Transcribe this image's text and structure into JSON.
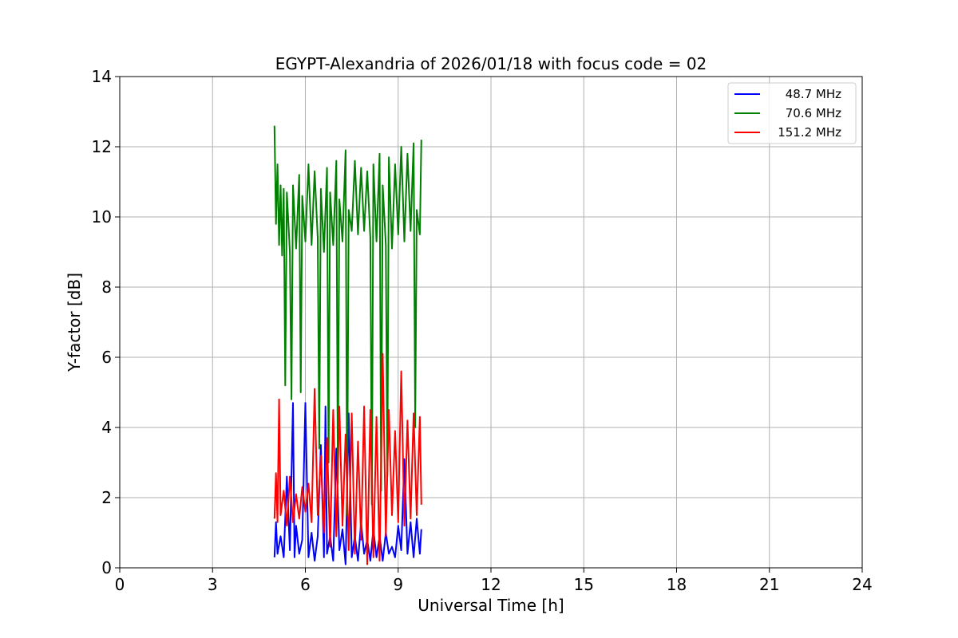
{
  "chart_data": {
    "type": "line",
    "title": "EGYPT-Alexandria of 2026/01/18 with focus code = 02",
    "xlabel": "Universal Time [h]",
    "ylabel": "Y-factor [dB]",
    "xlim": [
      0,
      24
    ],
    "ylim": [
      0,
      14
    ],
    "xticks": [
      0,
      3,
      6,
      9,
      12,
      15,
      18,
      21,
      24
    ],
    "yticks": [
      0,
      2,
      4,
      6,
      8,
      10,
      12,
      14
    ],
    "xtick_labels": [
      "0",
      "3",
      "6",
      "9",
      "12",
      "15",
      "18",
      "21",
      "24"
    ],
    "ytick_labels": [
      "0",
      "2",
      "4",
      "6",
      "8",
      "10",
      "12",
      "14"
    ],
    "grid": true,
    "legend_position": "top-right",
    "series": [
      {
        "name": "48.7 MHz",
        "color": "#0000ff",
        "x": [
          5.0,
          5.05,
          5.1,
          5.2,
          5.3,
          5.4,
          5.5,
          5.6,
          5.65,
          5.7,
          5.8,
          5.9,
          6.0,
          6.1,
          6.2,
          6.3,
          6.4,
          6.5,
          6.6,
          6.65,
          6.7,
          6.8,
          6.9,
          7.0,
          7.1,
          7.2,
          7.3,
          7.4,
          7.5,
          7.6,
          7.7,
          7.8,
          7.9,
          8.0,
          8.1,
          8.2,
          8.3,
          8.4,
          8.5,
          8.6,
          8.7,
          8.8,
          8.9,
          9.0,
          9.1,
          9.2,
          9.3,
          9.4,
          9.5,
          9.6,
          9.7,
          9.75
        ],
        "y": [
          0.3,
          1.3,
          0.4,
          0.9,
          0.3,
          2.6,
          0.5,
          4.7,
          0.3,
          1.2,
          0.4,
          0.8,
          4.7,
          0.3,
          1.0,
          0.2,
          0.9,
          3.5,
          0.3,
          4.6,
          0.4,
          0.9,
          0.2,
          3.4,
          0.5,
          1.1,
          0.1,
          4.4,
          0.3,
          0.9,
          0.2,
          1.3,
          0.4,
          0.8,
          0.2,
          1.1,
          0.3,
          0.9,
          0.2,
          1.0,
          0.4,
          0.6,
          0.3,
          1.2,
          0.5,
          3.1,
          0.4,
          1.3,
          0.3,
          1.4,
          0.4,
          1.1
        ]
      },
      {
        "name": "70.6 MHz",
        "color": "#008000",
        "x": [
          5.0,
          5.05,
          5.1,
          5.15,
          5.2,
          5.25,
          5.3,
          5.35,
          5.4,
          5.5,
          5.55,
          5.6,
          5.7,
          5.8,
          5.85,
          5.9,
          6.0,
          6.1,
          6.2,
          6.3,
          6.4,
          6.45,
          6.5,
          6.6,
          6.7,
          6.75,
          6.8,
          6.9,
          7.0,
          7.05,
          7.1,
          7.2,
          7.3,
          7.35,
          7.4,
          7.5,
          7.6,
          7.7,
          7.8,
          7.9,
          8.0,
          8.1,
          8.15,
          8.2,
          8.3,
          8.4,
          8.45,
          8.5,
          8.6,
          8.65,
          8.7,
          8.8,
          8.9,
          9.0,
          9.1,
          9.2,
          9.3,
          9.4,
          9.5,
          9.55,
          9.6,
          9.7,
          9.75
        ],
        "y": [
          12.6,
          9.8,
          11.5,
          9.2,
          10.9,
          8.9,
          10.8,
          5.2,
          10.7,
          9.0,
          4.8,
          10.9,
          9.1,
          11.2,
          5.0,
          10.6,
          9.3,
          11.5,
          9.2,
          11.3,
          9.4,
          3.4,
          10.8,
          9.0,
          11.4,
          3.0,
          10.7,
          9.2,
          11.6,
          2.4,
          10.5,
          9.3,
          11.9,
          1.5,
          10.2,
          9.6,
          11.6,
          9.5,
          11.4,
          9.6,
          11.3,
          9.4,
          1.8,
          11.5,
          9.3,
          11.8,
          2.2,
          10.9,
          9.2,
          2.6,
          11.7,
          9.1,
          11.5,
          9.5,
          12.0,
          9.3,
          11.8,
          9.6,
          12.1,
          4.0,
          10.2,
          9.5,
          12.2
        ]
      },
      {
        "name": "151.2 MHz",
        "color": "#ff0000",
        "x": [
          5.0,
          5.05,
          5.1,
          5.15,
          5.2,
          5.3,
          5.4,
          5.5,
          5.6,
          5.7,
          5.8,
          5.9,
          6.0,
          6.1,
          6.2,
          6.3,
          6.4,
          6.5,
          6.6,
          6.7,
          6.8,
          6.9,
          7.0,
          7.1,
          7.2,
          7.3,
          7.4,
          7.5,
          7.6,
          7.7,
          7.8,
          7.9,
          8.0,
          8.1,
          8.2,
          8.3,
          8.4,
          8.5,
          8.6,
          8.7,
          8.8,
          8.9,
          9.0,
          9.1,
          9.2,
          9.3,
          9.4,
          9.5,
          9.6,
          9.7,
          9.75
        ],
        "y": [
          1.4,
          2.7,
          1.3,
          4.8,
          1.5,
          2.2,
          1.2,
          2.6,
          1.3,
          2.1,
          1.4,
          2.3,
          1.6,
          2.4,
          1.3,
          5.1,
          1.5,
          3.2,
          1.0,
          3.7,
          0.6,
          4.5,
          0.9,
          4.6,
          1.2,
          3.8,
          0.5,
          4.4,
          0.4,
          3.6,
          0.8,
          4.6,
          0.1,
          4.5,
          0.3,
          4.3,
          0.2,
          6.1,
          0.9,
          4.5,
          1.5,
          3.9,
          1.3,
          5.6,
          1.2,
          4.2,
          1.4,
          4.4,
          1.5,
          4.3,
          1.8
        ]
      }
    ]
  }
}
